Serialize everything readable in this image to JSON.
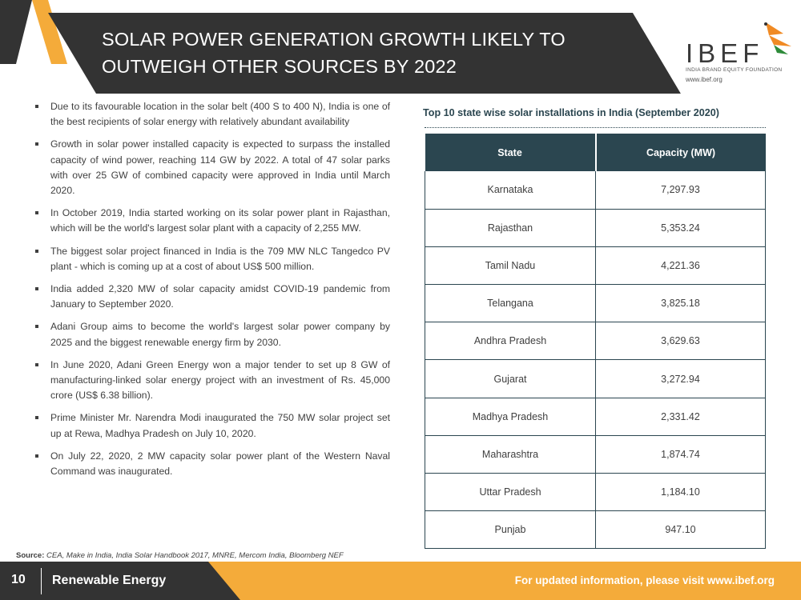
{
  "header": {
    "title_line1": "SOLAR POWER GENERATION GROWTH LIKELY TO",
    "title_line2": "OUTWEIGH OTHER SOURCES BY 2022"
  },
  "logo": {
    "name": "IBEF",
    "subtitle": "INDIA BRAND EQUITY FOUNDATION",
    "url": "www.ibef.org"
  },
  "bullets": [
    "Due to its favourable location in the solar belt (400 S to 400 N), India is one of the best recipients of solar energy with relatively abundant availability",
    "Growth in solar power installed capacity is expected to surpass the installed capacity of wind power, reaching 114 GW by 2022. A total of 47 solar parks with over 25 GW of combined capacity were approved in India until March 2020.",
    "In October 2019, India started working on its solar power plant in Rajasthan, which will be the world's largest solar plant with a capacity of 2,255 MW.",
    "The biggest solar project financed in India is the 709 MW NLC Tangedco PV plant - which is coming up at a cost of about US$ 500 million.",
    "India added 2,320 MW of solar capacity amidst COVID-19 pandemic from January to September 2020.",
    "Adani Group aims to become the world's largest solar power company by 2025 and the biggest renewable energy firm by 2030.",
    "In June 2020, Adani Green Energy won a major tender to set up 8 GW of manufacturing-linked solar energy project with an investment of Rs. 45,000 crore (US$ 6.38 billion).",
    "Prime Minister Mr. Narendra Modi inaugurated the 750 MW solar project set up at Rewa, Madhya Pradesh on July 10, 2020.",
    "On July 22, 2020, 2 MW capacity solar power plant of the Western Naval Command was inaugurated."
  ],
  "source": {
    "label": "Source:",
    "text": "CEA, Make in India, India Solar Handbook 2017, MNRE, Mercom India, Bloomberg NEF"
  },
  "table": {
    "title": "Top 10 state wise solar installations in India (September 2020)",
    "headers": [
      "State",
      "Capacity (MW)"
    ],
    "rows": [
      [
        "Karnataka",
        "7,297.93"
      ],
      [
        "Rajasthan",
        "5,353.24"
      ],
      [
        "Tamil Nadu",
        "4,221.36"
      ],
      [
        "Telangana",
        "3,825.18"
      ],
      [
        "Andhra Pradesh",
        "3,629.63"
      ],
      [
        "Gujarat",
        "3,272.94"
      ],
      [
        "Madhya Pradesh",
        "2,331.42"
      ],
      [
        "Maharashtra",
        "1,874.74"
      ],
      [
        "Uttar Pradesh",
        "1,184.10"
      ],
      [
        "Punjab",
        "947.10"
      ]
    ]
  },
  "footer": {
    "page_number": "10",
    "section": "Renewable Energy",
    "info": "For updated information, please visit www.ibef.org"
  },
  "colors": {
    "header_dark": "#333333",
    "accent_orange": "#f4ab3a",
    "table_header": "#2b4650",
    "logo_orange": "#f08a24",
    "logo_green": "#2e8b3a"
  }
}
